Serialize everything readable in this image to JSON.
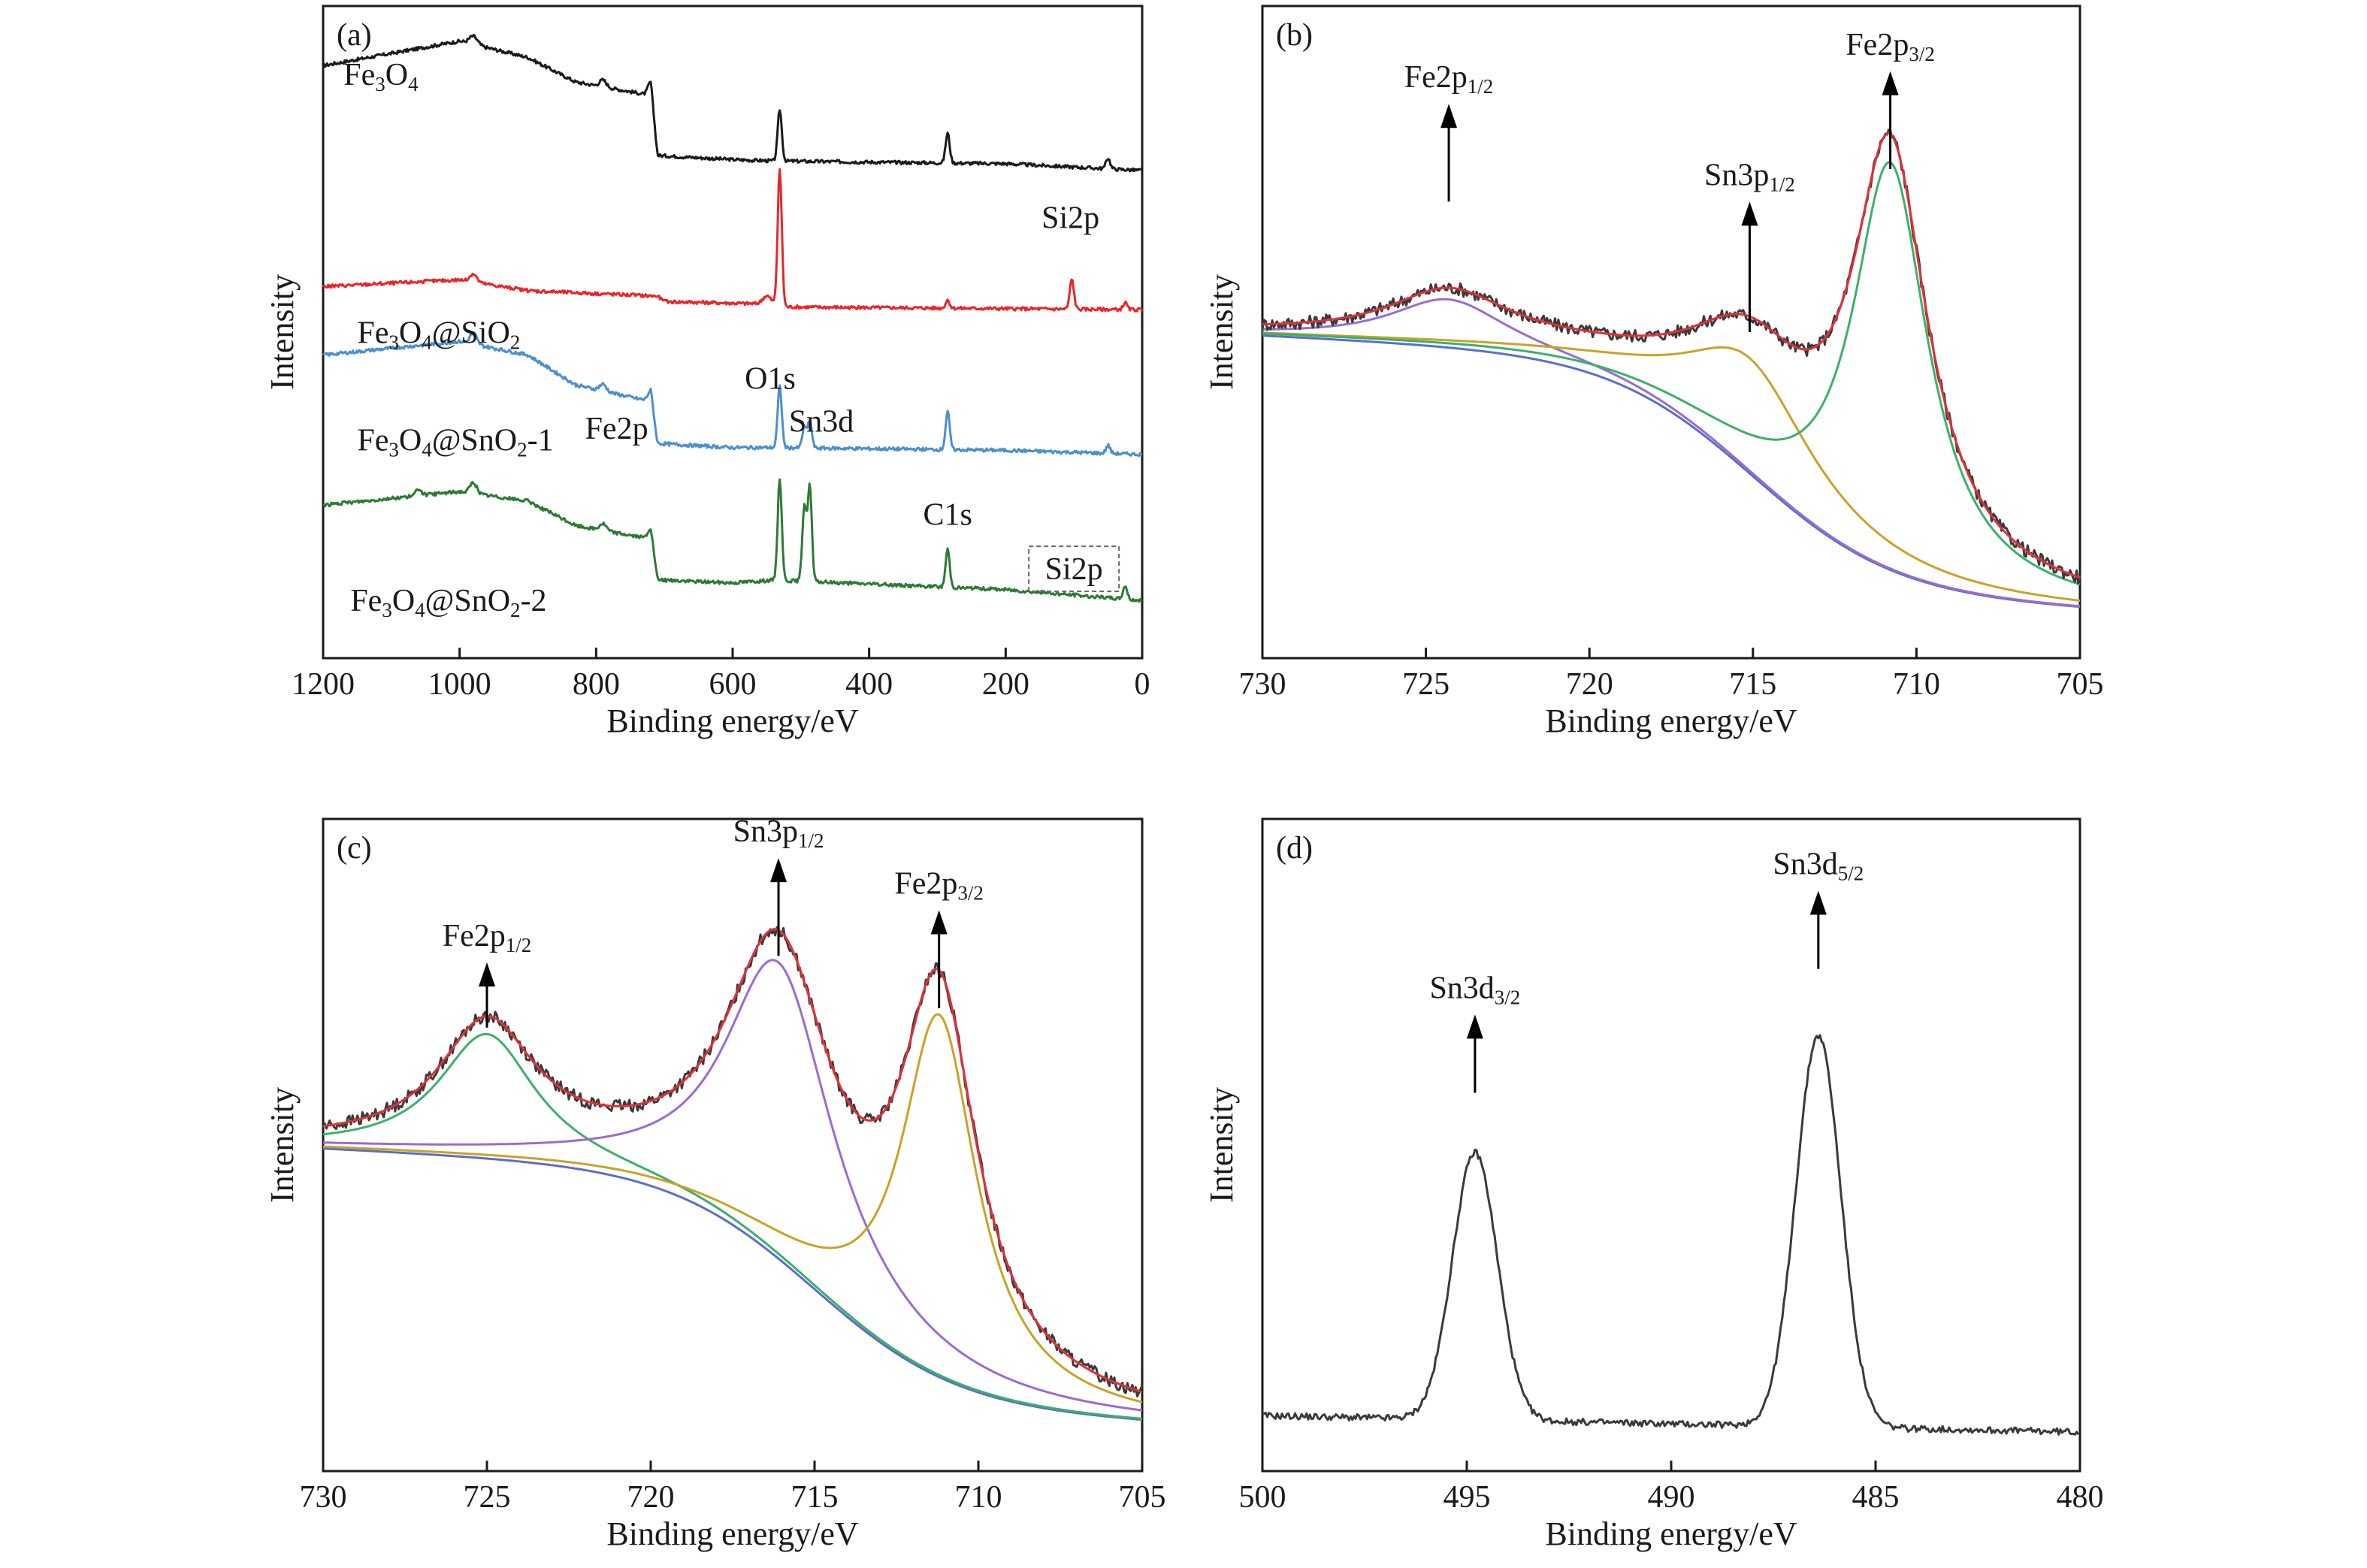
{
  "chart_data": [
    {
      "panel": "(a)",
      "type": "line",
      "xlabel": "Binding energy/eV",
      "ylabel": "Intensity",
      "xlim": [
        1200,
        0
      ],
      "xticks": [
        1200,
        1000,
        800,
        600,
        400,
        200,
        0
      ],
      "series": [
        {
          "name": "Fe3O4",
          "color": "#1a1a1a",
          "offset": 3.0,
          "baseline": [
            [
              1200,
              0.72
            ],
            [
              1000,
              0.9
            ],
            [
              900,
              0.78
            ],
            [
              830,
              0.6
            ],
            [
              740,
              0.52
            ],
            [
              720,
              0.5
            ],
            [
              710,
              0.06
            ],
            [
              600,
              0.03
            ],
            [
              540,
              0.02
            ],
            [
              200,
              0.0
            ],
            [
              0,
              -0.05
            ]
          ],
          "peaks": [
            [
              980,
              0.06,
              6
            ],
            [
              790,
              0.05,
              5
            ],
            [
              720,
              0.1,
              4
            ],
            [
              531,
              0.38,
              3
            ],
            [
              285,
              0.22,
              3
            ],
            [
              50,
              0.08,
              3
            ]
          ]
        },
        {
          "name": "Fe3O4@SiO2",
          "color": "#e8262a",
          "offset": 2.0,
          "baseline": [
            [
              1200,
              0.15
            ],
            [
              1000,
              0.2
            ],
            [
              900,
              0.12
            ],
            [
              710,
              0.08
            ],
            [
              700,
              0.04
            ],
            [
              540,
              0.02
            ],
            [
              520,
              0.0
            ],
            [
              0,
              -0.02
            ]
          ],
          "peaks": [
            [
              980,
              0.06,
              5
            ],
            [
              550,
              0.06,
              6
            ],
            [
              531,
              1.0,
              3
            ],
            [
              285,
              0.06,
              3
            ],
            [
              103,
              0.22,
              3
            ],
            [
              25,
              0.05,
              3
            ]
          ]
        },
        {
          "name": "Fe3O4@SnO2-1",
          "color": "#4b8fcf",
          "offset": 1.0,
          "baseline": [
            [
              1200,
              0.7
            ],
            [
              1000,
              0.8
            ],
            [
              900,
              0.7
            ],
            [
              830,
              0.48
            ],
            [
              740,
              0.38
            ],
            [
              720,
              0.36
            ],
            [
              710,
              0.05
            ],
            [
              600,
              0.02
            ],
            [
              540,
              0.02
            ],
            [
              200,
              0.0
            ],
            [
              0,
              -0.03
            ]
          ],
          "peaks": [
            [
              980,
              0.08,
              5
            ],
            [
              790,
              0.05,
              5
            ],
            [
              720,
              0.08,
              4
            ],
            [
              531,
              0.45,
              3
            ],
            [
              495,
              0.15,
              3
            ],
            [
              487,
              0.2,
              3
            ],
            [
              285,
              0.28,
              3
            ],
            [
              50,
              0.06,
              3
            ]
          ]
        },
        {
          "name": "Fe3O4@SnO2-2",
          "color": "#2c7a35",
          "offset": 0.0,
          "baseline": [
            [
              1200,
              0.65
            ],
            [
              1000,
              0.75
            ],
            [
              900,
              0.68
            ],
            [
              830,
              0.5
            ],
            [
              740,
              0.42
            ],
            [
              720,
              0.4
            ],
            [
              710,
              0.1
            ],
            [
              600,
              0.08
            ],
            [
              540,
              0.1
            ],
            [
              200,
              0.03
            ],
            [
              0,
              -0.05
            ]
          ],
          "peaks": [
            [
              1060,
              0.05,
              4
            ],
            [
              980,
              0.08,
              5
            ],
            [
              790,
              0.05,
              5
            ],
            [
              720,
              0.08,
              4
            ],
            [
              531,
              0.75,
              3
            ],
            [
              495,
              0.55,
              3
            ],
            [
              487,
              0.7,
              3
            ],
            [
              285,
              0.28,
              3
            ],
            [
              25,
              0.1,
              3
            ]
          ]
        }
      ],
      "labels": [
        {
          "text": "Fe",
          "sub1": "3",
          "mid": "O",
          "sub2": "4",
          "tail": "",
          "x": 1170,
          "y": 3.55
        },
        {
          "text": "Fe",
          "sub1": "3",
          "mid": "O",
          "sub2": "4",
          "tail": "@SiO",
          "sub3": "2",
          "x": 1150,
          "y": 1.75
        },
        {
          "text": "Fe",
          "sub1": "3",
          "mid": "O",
          "sub2": "4",
          "tail": "@SnO",
          "sub3": "2",
          "suffix": "-1",
          "x": 1150,
          "y": 1.0
        },
        {
          "text": "Fe",
          "sub1": "3",
          "mid": "O",
          "sub2": "4",
          "tail": "@SnO",
          "sub3": "2",
          "suffix": "-2",
          "x": 1160,
          "y": -0.12
        }
      ],
      "annotations": [
        {
          "text": "Si2p",
          "x": 105,
          "y": 2.55
        },
        {
          "text": "O1s",
          "x": 545,
          "y": 1.43
        },
        {
          "text": "Sn3d",
          "x": 470,
          "y": 1.13
        },
        {
          "text": "Fe2p",
          "x": 770,
          "y": 1.08
        },
        {
          "text": "C1s",
          "x": 285,
          "y": 0.48
        },
        {
          "text": "Si2p",
          "x": 100,
          "y": 0.1,
          "boxed": true
        }
      ],
      "ylim": [
        -0.45,
        4.1
      ]
    },
    {
      "panel": "(b)",
      "type": "line",
      "xlabel": "Binding energy/eV",
      "ylabel": "Intensity",
      "xlim": [
        730,
        705
      ],
      "xticks": [
        730,
        725,
        720,
        715,
        710,
        705
      ],
      "ylim": [
        0,
        1.0
      ],
      "components": [
        {
          "name": "raw",
          "color": "#3a3a3a"
        },
        {
          "name": "fit",
          "color": "#e0303a"
        },
        {
          "name": "Fe2p3/2 component",
          "color": "#3bb06a"
        },
        {
          "name": "Sn3p1/2 component",
          "color": "#c9a227"
        },
        {
          "name": "Fe2p1/2 component",
          "color": "#9a6bd0"
        },
        {
          "name": "background",
          "color": "#5b6ec8"
        }
      ],
      "peaks": [
        {
          "center": 724.3,
          "height": 0.55,
          "width": 2.2
        },
        {
          "center": 715.1,
          "height": 0.46,
          "width": 2.4
        },
        {
          "center": 710.8,
          "height": 0.76,
          "width": 1.4
        }
      ],
      "arrows": [
        {
          "label": "Fe2p",
          "sub": "1/2",
          "x": 724.3,
          "from": 0.7,
          "to": 0.85
        },
        {
          "label": "Sn3p",
          "sub": "1/2",
          "x": 715.1,
          "from": 0.5,
          "to": 0.7
        },
        {
          "label": "Fe2p",
          "sub": "3/2",
          "x": 710.8,
          "from": 0.75,
          "to": 0.9
        }
      ]
    },
    {
      "panel": "(c)",
      "type": "line",
      "xlabel": "Binding energy/eV",
      "ylabel": "Intensity",
      "xlim": [
        730,
        705
      ],
      "xticks": [
        730,
        725,
        720,
        715,
        710,
        705
      ],
      "ylim": [
        0,
        1.0
      ],
      "components": [
        {
          "name": "raw",
          "color": "#3a3a3a"
        },
        {
          "name": "fit",
          "color": "#e0303a"
        },
        {
          "name": "Fe2p1/2 component",
          "color": "#3bb06a"
        },
        {
          "name": "Sn3p1/2 component",
          "color": "#9a6bd0"
        },
        {
          "name": "Fe2p3/2 component",
          "color": "#c9a227"
        },
        {
          "name": "background",
          "color": "#5b6ec8"
        }
      ],
      "peaks": [
        {
          "center": 725.0,
          "height": 0.67,
          "width": 1.8
        },
        {
          "center": 716.1,
          "height": 0.78,
          "width": 2.0
        },
        {
          "center": 711.2,
          "height": 0.7,
          "width": 1.4
        }
      ],
      "arrows": [
        {
          "label": "Fe2p",
          "sub": "1/2",
          "x": 725.0,
          "from": 0.68,
          "to": 0.78
        },
        {
          "label": "Sn3p",
          "sub": "1/2",
          "x": 716.1,
          "from": 0.79,
          "to": 0.94
        },
        {
          "label": "Fe2p",
          "sub": "3/2",
          "x": 711.2,
          "from": 0.71,
          "to": 0.86
        }
      ]
    },
    {
      "panel": "(d)",
      "type": "line",
      "xlabel": "Binding energy/eV",
      "ylabel": "Intensity",
      "xlim": [
        500,
        480
      ],
      "xticks": [
        500,
        495,
        490,
        485,
        480
      ],
      "ylim": [
        0,
        1.0
      ],
      "components": [
        {
          "name": "raw",
          "color": "#3a3a3a"
        }
      ],
      "peaks": [
        {
          "center": 494.8,
          "height": 0.47,
          "width": 0.55
        },
        {
          "center": 486.4,
          "height": 0.66,
          "width": 0.55
        }
      ],
      "arrows": [
        {
          "label": "Sn3d",
          "sub": "3/2",
          "x": 494.8,
          "from": 0.58,
          "to": 0.7
        },
        {
          "label": "Sn3d",
          "sub": "5/2",
          "x": 486.4,
          "from": 0.77,
          "to": 0.89
        }
      ]
    }
  ]
}
